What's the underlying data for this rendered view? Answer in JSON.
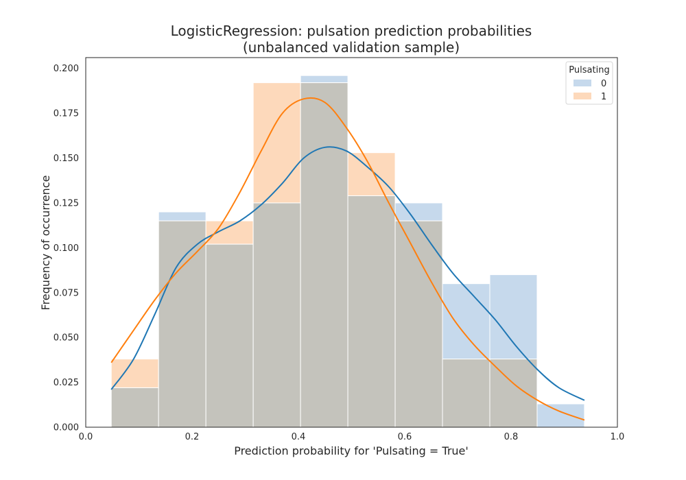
{
  "chart_data": {
    "type": "histogram",
    "title_line1": "LogisticRegression: pulsation prediction probabilities",
    "title_line2": "(unbalanced validation sample)",
    "xlabel": "Prediction probability for 'Pulsating = True'",
    "ylabel": "Frequency of occurrence",
    "xlim": [
      0.0,
      1.0
    ],
    "ylim": [
      0.0,
      0.206
    ],
    "xticks": [
      0.0,
      0.2,
      0.4,
      0.6,
      0.8,
      1.0
    ],
    "xtick_labels": [
      "0.0",
      "0.2",
      "0.4",
      "0.6",
      "0.8",
      "1.0"
    ],
    "yticks": [
      0.0,
      0.025,
      0.05,
      0.075,
      0.1,
      0.125,
      0.15,
      0.175,
      0.2
    ],
    "ytick_labels": [
      "0.000",
      "0.025",
      "0.050",
      "0.075",
      "0.100",
      "0.125",
      "0.150",
      "0.175",
      "0.200"
    ],
    "bin_edges": [
      0.048,
      0.137,
      0.226,
      0.315,
      0.404,
      0.493,
      0.582,
      0.671,
      0.76,
      0.849,
      0.938
    ],
    "legend": {
      "title": "Pulsating",
      "position": "upper right"
    },
    "grid": false,
    "series": [
      {
        "name": "0",
        "color": "#1f77b4",
        "fill_color": "#c6d9ec",
        "bar_values": [
          0.022,
          0.12,
          0.102,
          0.125,
          0.196,
          0.129,
          0.125,
          0.08,
          0.085,
          0.013
        ],
        "kde": {
          "x": [
            0.048,
            0.09,
            0.13,
            0.17,
            0.21,
            0.25,
            0.29,
            0.33,
            0.37,
            0.41,
            0.45,
            0.49,
            0.53,
            0.57,
            0.61,
            0.65,
            0.69,
            0.73,
            0.77,
            0.81,
            0.85,
            0.89,
            0.938
          ],
          "y": [
            0.021,
            0.038,
            0.063,
            0.089,
            0.102,
            0.109,
            0.115,
            0.124,
            0.136,
            0.15,
            0.156,
            0.154,
            0.145,
            0.134,
            0.119,
            0.102,
            0.086,
            0.073,
            0.06,
            0.045,
            0.032,
            0.022,
            0.015
          ]
        }
      },
      {
        "name": "1",
        "color": "#ff7f0e",
        "fill_color": "#fdd9bb",
        "bar_values": [
          0.038,
          0.115,
          0.115,
          0.192,
          0.192,
          0.153,
          0.115,
          0.038,
          0.038,
          0.0
        ],
        "kde": {
          "x": [
            0.048,
            0.09,
            0.13,
            0.17,
            0.21,
            0.25,
            0.29,
            0.33,
            0.37,
            0.41,
            0.45,
            0.49,
            0.53,
            0.57,
            0.61,
            0.65,
            0.69,
            0.73,
            0.77,
            0.81,
            0.85,
            0.89,
            0.938
          ],
          "y": [
            0.036,
            0.054,
            0.071,
            0.086,
            0.098,
            0.111,
            0.131,
            0.154,
            0.175,
            0.183,
            0.181,
            0.167,
            0.148,
            0.125,
            0.103,
            0.081,
            0.061,
            0.046,
            0.034,
            0.023,
            0.015,
            0.009,
            0.004
          ]
        }
      }
    ],
    "overlap_color": "#c4c3bc"
  }
}
